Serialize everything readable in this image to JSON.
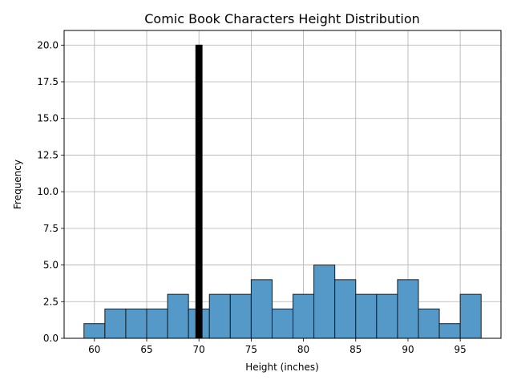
{
  "chart_data": {
    "type": "bar",
    "title": "Comic Book Characters Height Distribution",
    "xlabel": "Height (inches)",
    "ylabel": "Frequency",
    "xlim": [
      57.1,
      98.9
    ],
    "ylim": [
      0,
      21
    ],
    "xticks": [
      60,
      65,
      70,
      75,
      80,
      85,
      90,
      95
    ],
    "xtick_labels": [
      "60",
      "65",
      "70",
      "75",
      "80",
      "85",
      "90",
      "95"
    ],
    "yticks": [
      0,
      2.5,
      5,
      7.5,
      10,
      12.5,
      15,
      17.5,
      20
    ],
    "ytick_labels": [
      "0.0",
      "2.5",
      "5.0",
      "7.5",
      "10.0",
      "12.5",
      "15.0",
      "17.5",
      "20.0"
    ],
    "grid": true,
    "series": [
      {
        "color": "#5599c9",
        "edge_color": "#1a1a1a",
        "bins": [
          {
            "x0": 59,
            "x1": 61,
            "count": 1
          },
          {
            "x0": 61,
            "x1": 63,
            "count": 2
          },
          {
            "x0": 63,
            "x1": 65,
            "count": 2
          },
          {
            "x0": 65,
            "x1": 67,
            "count": 2
          },
          {
            "x0": 67,
            "x1": 69,
            "count": 3
          },
          {
            "x0": 69,
            "x1": 71,
            "count": 2
          },
          {
            "x0": 71,
            "x1": 73,
            "count": 3
          },
          {
            "x0": 73,
            "x1": 75,
            "count": 3
          },
          {
            "x0": 75,
            "x1": 77,
            "count": 4
          },
          {
            "x0": 77,
            "x1": 79,
            "count": 2
          },
          {
            "x0": 79,
            "x1": 81,
            "count": 3
          },
          {
            "x0": 81,
            "x1": 83,
            "count": 5
          },
          {
            "x0": 83,
            "x1": 85,
            "count": 4
          },
          {
            "x0": 85,
            "x1": 87,
            "count": 3
          },
          {
            "x0": 87,
            "x1": 89,
            "count": 3
          },
          {
            "x0": 89,
            "x1": 91,
            "count": 4
          },
          {
            "x0": 91,
            "x1": 93,
            "count": 2
          },
          {
            "x0": 93,
            "x1": 95,
            "count": 1
          },
          {
            "x0": 95,
            "x1": 97,
            "count": 3
          }
        ]
      },
      {
        "color": "#000000",
        "edge_color": "#000000",
        "bins": [
          {
            "x0": 69.7,
            "x1": 70.3,
            "count": 20
          }
        ]
      }
    ]
  }
}
